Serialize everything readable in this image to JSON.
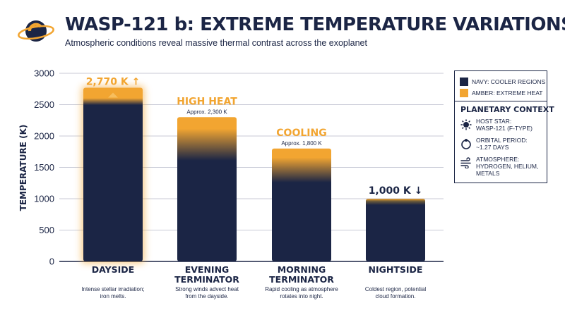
{
  "header": {
    "title": "WASP-121 b: EXTREME TEMPERATURE VARIATIONS",
    "subtitle": "Atmospheric conditions reveal massive thermal contrast across the exoplanet"
  },
  "legend": {
    "items": [
      {
        "label": "NAVY: COOLER REGIONS",
        "color": "#1b2545"
      },
      {
        "label": "AMBER: EXTREME HEAT",
        "color": "#f2a531"
      }
    ],
    "context_title": "PLANETARY CONTEXT",
    "context": [
      {
        "icon": "star-icon",
        "lines": [
          "HOST STAR:",
          "WASP-121 (F-TYPE)"
        ]
      },
      {
        "icon": "orbit-icon",
        "lines": [
          "ORBITAL PERIOD:",
          "~1.27 DAYS"
        ]
      },
      {
        "icon": "wind-icon",
        "lines": [
          "ATMOSPHERE:",
          "HYDROGEN, HELIUM,",
          "METALS"
        ]
      }
    ]
  },
  "colors": {
    "navy": "#1b2545",
    "amber": "#f2a531",
    "grid": "#c8cad6"
  },
  "chart_data": {
    "type": "bar",
    "ylabel": "TEMPERATURE (K)",
    "ylim": [
      0,
      3000
    ],
    "yticks": [
      0,
      500,
      1000,
      1500,
      2000,
      2500,
      3000
    ],
    "grid": true,
    "categories": [
      {
        "lines": [
          "DAYSIDE"
        ],
        "description": [
          "Intense stellar irradiation;",
          "iron melts."
        ]
      },
      {
        "lines": [
          "EVENING",
          "TERMINATOR"
        ],
        "description": [
          "Strong winds advect heat",
          "from the dayside."
        ]
      },
      {
        "lines": [
          "MORNING",
          "TERMINATOR"
        ],
        "description": [
          "Rapid cooling as atmosphere",
          "rotates into night."
        ]
      },
      {
        "lines": [
          "NIGHTSIDE"
        ],
        "description": [
          "Coldest region, potential",
          "cloud formation."
        ]
      }
    ],
    "values": [
      2770,
      2300,
      1800,
      1000
    ],
    "annotations": [
      {
        "label": "2,770 K ↑",
        "sub": ""
      },
      {
        "label": "HIGH HEAT",
        "sub": "Approx. 2,300 K"
      },
      {
        "label": "COOLING",
        "sub": "Approx. 1,800 K"
      },
      {
        "label": "1,000 K ↓",
        "sub": ""
      }
    ]
  }
}
